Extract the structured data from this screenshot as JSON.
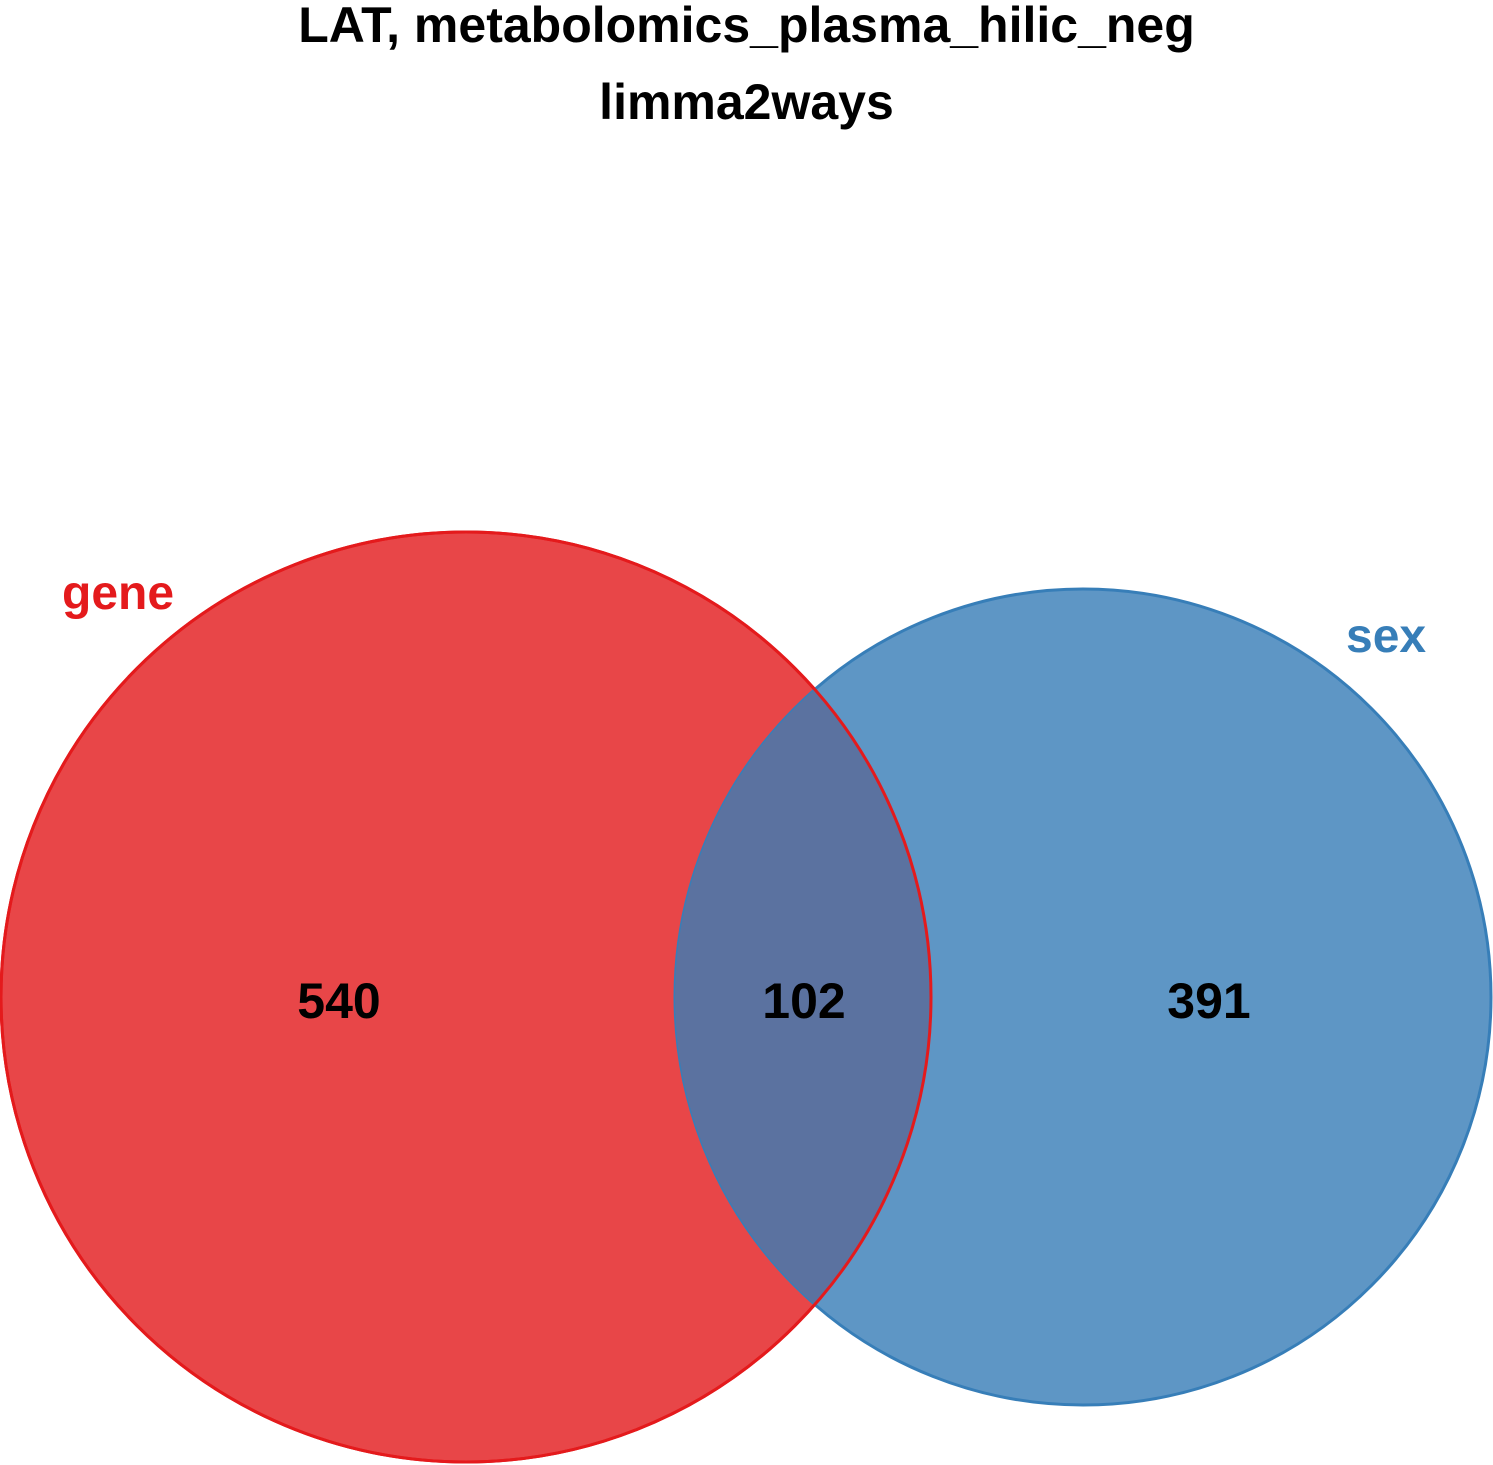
{
  "title": {
    "line1": "LAT, metabolomics_plasma_hilic_neg",
    "line2": "limma2ways"
  },
  "sets": [
    {
      "name": "gene",
      "color": "#e41a1c",
      "fill": "#e84648"
    },
    {
      "name": "sex",
      "color": "#377eb8",
      "fill": "#5e96c5"
    }
  ],
  "regions": {
    "gene_only": "540",
    "both": "102",
    "sex_only": "391"
  },
  "intersection_fill": "#5b72a0"
}
